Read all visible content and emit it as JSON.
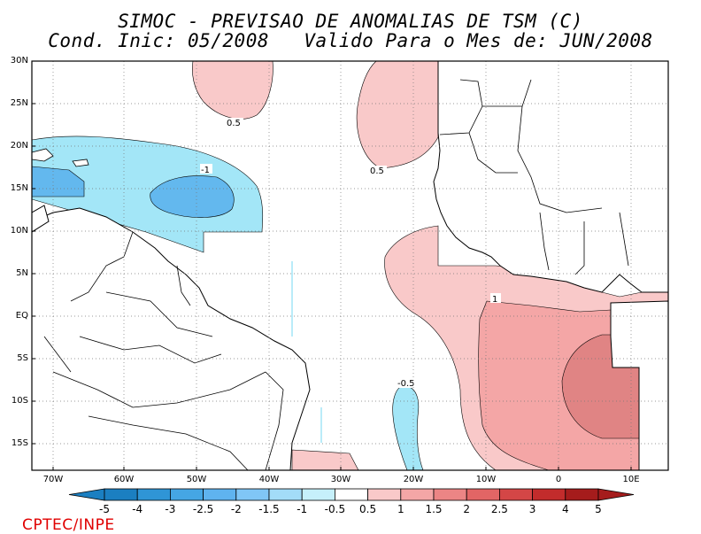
{
  "title": {
    "line1": "SIMOC - PREVISAO DE ANOMALIAS DE TSM (C)",
    "line2": "Cond. Inic: 05/2008   Valido Para o Mes de: JUN/2008"
  },
  "map": {
    "lat_labels": [
      "30N",
      "25N",
      "20N",
      "15N",
      "10N",
      "5N",
      "EQ",
      "5S",
      "10S",
      "15S"
    ],
    "lon_labels": [
      "70W",
      "60W",
      "50W",
      "40W",
      "30W",
      "20W",
      "10W",
      "0",
      "10E"
    ],
    "contour_labels": [
      "0.5",
      "0.5",
      "-1",
      "1",
      "-0.5"
    ]
  },
  "colorbar": {
    "labels": [
      "-5",
      "-4",
      "-3",
      "-2.5",
      "-2",
      "-1.5",
      "-1",
      "-0.5",
      "0.5",
      "1",
      "1.5",
      "2",
      "2.5",
      "3",
      "4",
      "5"
    ],
    "colors": [
      "#1b7fc1",
      "#2f95d6",
      "#45a6e4",
      "#5fb3ef",
      "#80c6f6",
      "#a3dcf8",
      "#c6f0fb",
      "#ffffff",
      "#f9c9c9",
      "#f4a6a6",
      "#ec8585",
      "#e26565",
      "#d44646",
      "#c22c2c",
      "#a51c1c"
    ]
  },
  "logo": "CPTEC/INPE"
}
